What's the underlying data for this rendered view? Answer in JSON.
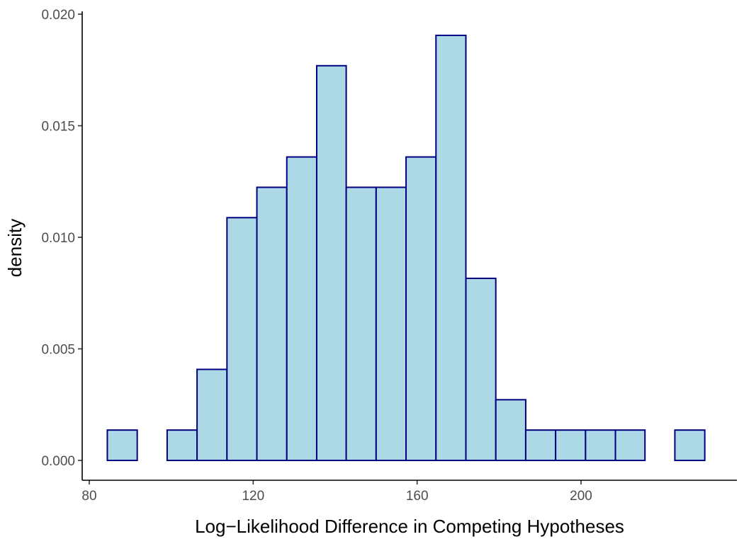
{
  "chart_data": {
    "type": "bar",
    "subtype": "histogram",
    "title": "",
    "xlabel": "Log−Likelihood Difference in Competing Hypotheses",
    "ylabel": "density",
    "xlim": [
      84.4,
      230.2
    ],
    "ylim": [
      0,
      0.02
    ],
    "x_ticks": [
      80,
      120,
      160,
      200
    ],
    "x_tick_labels": [
      "80",
      "120",
      "160",
      "200"
    ],
    "y_ticks": [
      0.0,
      0.005,
      0.01,
      0.015,
      0.02
    ],
    "y_tick_labels": [
      "0.000",
      "0.005",
      "0.010",
      "0.015",
      "0.020"
    ],
    "bins": [
      {
        "x0": 84.4,
        "x1": 91.7,
        "density": 0.00136
      },
      {
        "x0": 91.7,
        "x1": 99.0,
        "density": 0.0
      },
      {
        "x0": 99.0,
        "x1": 106.3,
        "density": 0.00136
      },
      {
        "x0": 106.3,
        "x1": 113.6,
        "density": 0.00408
      },
      {
        "x0": 113.6,
        "x1": 120.9,
        "density": 0.01088
      },
      {
        "x0": 120.9,
        "x1": 128.2,
        "density": 0.01224
      },
      {
        "x0": 128.2,
        "x1": 135.5,
        "density": 0.0136
      },
      {
        "x0": 135.5,
        "x1": 142.7,
        "density": 0.01769
      },
      {
        "x0": 142.7,
        "x1": 150.0,
        "density": 0.01224
      },
      {
        "x0": 150.0,
        "x1": 157.3,
        "density": 0.01224
      },
      {
        "x0": 157.3,
        "x1": 164.6,
        "density": 0.0136
      },
      {
        "x0": 164.6,
        "x1": 171.9,
        "density": 0.01905
      },
      {
        "x0": 171.9,
        "x1": 179.2,
        "density": 0.00816
      },
      {
        "x0": 179.2,
        "x1": 186.5,
        "density": 0.00272
      },
      {
        "x0": 186.5,
        "x1": 193.8,
        "density": 0.00136
      },
      {
        "x0": 193.8,
        "x1": 201.1,
        "density": 0.00136
      },
      {
        "x0": 201.1,
        "x1": 208.4,
        "density": 0.00136
      },
      {
        "x0": 208.4,
        "x1": 215.6,
        "density": 0.00136
      },
      {
        "x0": 215.6,
        "x1": 222.9,
        "density": 0.0
      },
      {
        "x0": 222.9,
        "x1": 230.2,
        "density": 0.00136
      }
    ],
    "colors": {
      "fill": "#add8e6",
      "stroke": "#000080"
    },
    "grid": false,
    "legend": "none"
  }
}
